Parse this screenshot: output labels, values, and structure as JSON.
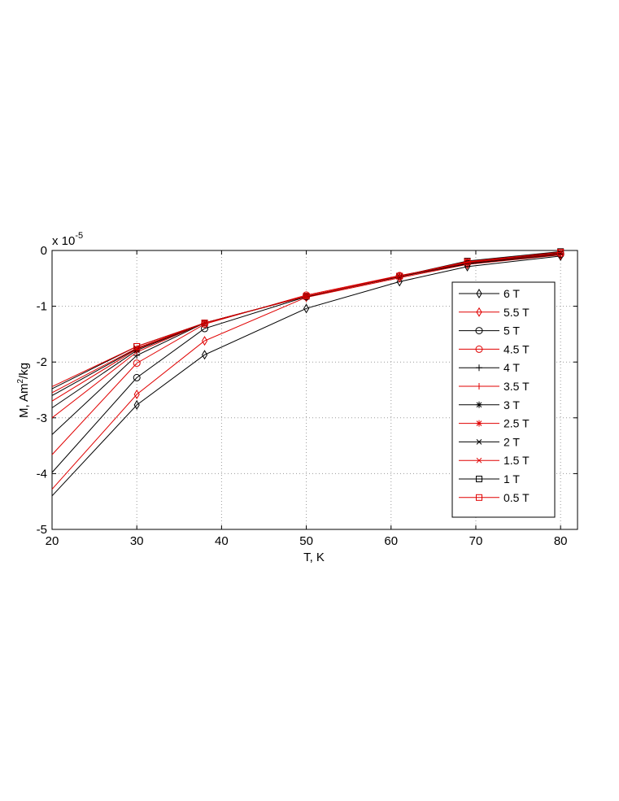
{
  "chart_data": {
    "type": "line",
    "xlabel": "T, K",
    "ylabel_main": "M, Am",
    "ylabel_sup": "2",
    "ylabel_tail": "/kg",
    "multiplier_base": "x 10",
    "multiplier_exp": "-5",
    "xlim": [
      20,
      82
    ],
    "ylim": [
      -5,
      0
    ],
    "xticks": [
      20,
      30,
      40,
      50,
      60,
      70,
      80
    ],
    "yticks": [
      0,
      -1,
      -2,
      -3,
      -4,
      -5
    ],
    "grid": true,
    "legend_position": "right",
    "x": [
      20,
      30,
      38,
      50,
      61,
      69,
      80
    ],
    "series": [
      {
        "name": "6 T",
        "color": "#000000",
        "marker": "diamond",
        "values": [
          -4.4,
          -2.77,
          -1.87,
          -1.04,
          -0.56,
          -0.29,
          -0.1
        ]
      },
      {
        "name": "5.5 T",
        "color": "#e00000",
        "marker": "diamond",
        "values": [
          -4.28,
          -2.58,
          -1.62,
          -0.84,
          -0.49,
          -0.25,
          -0.08
        ]
      },
      {
        "name": "5 T",
        "color": "#000000",
        "marker": "circle",
        "values": [
          -3.98,
          -2.28,
          -1.4,
          -0.83,
          -0.46,
          -0.23,
          -0.07
        ]
      },
      {
        "name": "4.5 T",
        "color": "#e00000",
        "marker": "circle",
        "values": [
          -3.66,
          -2.02,
          -1.32,
          -0.8,
          -0.45,
          -0.22,
          -0.06
        ]
      },
      {
        "name": "4 T",
        "color": "#000000",
        "marker": "plus",
        "values": [
          -3.3,
          -1.88,
          -1.3,
          -0.82,
          -0.47,
          -0.24,
          -0.07
        ]
      },
      {
        "name": "3.5 T",
        "color": "#e00000",
        "marker": "plus",
        "values": [
          -3.0,
          -1.82,
          -1.3,
          -0.82,
          -0.47,
          -0.23,
          -0.06
        ]
      },
      {
        "name": "3 T",
        "color": "#000000",
        "marker": "asterisk",
        "values": [
          -2.82,
          -1.79,
          -1.3,
          -0.82,
          -0.47,
          -0.23,
          -0.05
        ]
      },
      {
        "name": "2.5 T",
        "color": "#e00000",
        "marker": "asterisk",
        "values": [
          -2.7,
          -1.77,
          -1.3,
          -0.82,
          -0.47,
          -0.22,
          -0.05
        ]
      },
      {
        "name": "2 T",
        "color": "#000000",
        "marker": "x",
        "values": [
          -2.6,
          -1.76,
          -1.3,
          -0.82,
          -0.47,
          -0.21,
          -0.04
        ]
      },
      {
        "name": "1.5 T",
        "color": "#e00000",
        "marker": "x",
        "values": [
          -2.55,
          -1.75,
          -1.3,
          -0.82,
          -0.46,
          -0.21,
          -0.03
        ]
      },
      {
        "name": "1 T",
        "color": "#000000",
        "marker": "square",
        "values": [
          -2.48,
          -1.72,
          -1.3,
          -0.82,
          -0.46,
          -0.19,
          -0.02
        ]
      },
      {
        "name": "0.5 T",
        "color": "#e00000",
        "marker": "square",
        "values": [
          -2.44,
          -1.72,
          -1.3,
          -0.82,
          -0.46,
          -0.2,
          -0.03
        ]
      }
    ]
  }
}
